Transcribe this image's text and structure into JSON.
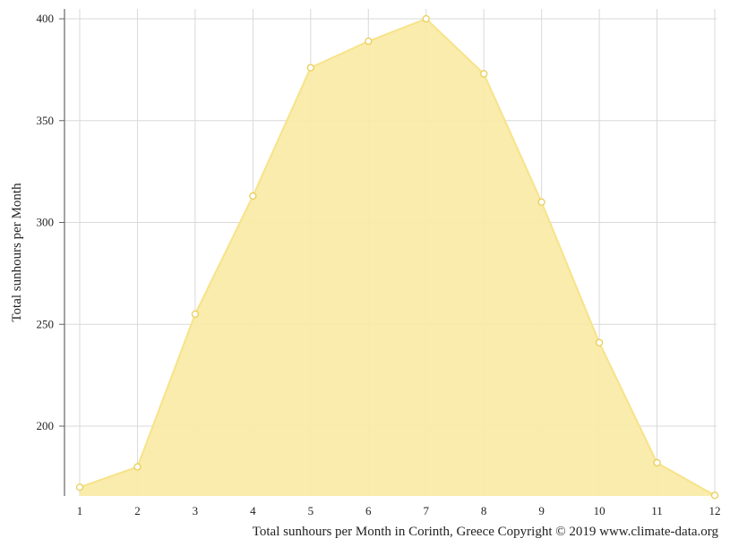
{
  "chart_data": {
    "type": "area",
    "title": "",
    "ylabel": "Total sunhours per Month",
    "xlabel": "",
    "caption": "Total sunhours per Month in Corinth, Greece Copyright © 2019 www.climate-data.org",
    "x": [
      1,
      2,
      3,
      4,
      5,
      6,
      7,
      8,
      9,
      10,
      11,
      12
    ],
    "x_tick_labels": [
      "1",
      "2",
      "3",
      "4",
      "5",
      "6",
      "7",
      "8",
      "9",
      "10",
      "11",
      "12"
    ],
    "y_tick_labels": [
      "400",
      "350",
      "300",
      "250",
      "200"
    ],
    "y_ticks": [
      400,
      350,
      300,
      250,
      200
    ],
    "series": [
      {
        "values": [
          170,
          180,
          255,
          313,
          376,
          389,
          400,
          373,
          310,
          241,
          182,
          166
        ]
      }
    ],
    "ylim": [
      166,
      404
    ],
    "xlim": [
      1,
      12
    ],
    "grid": true,
    "legend": "none",
    "colors": {
      "fill": "#f9eba8",
      "line": "#f7e38a",
      "marker_fill": "#ffffff",
      "marker_stroke": "#eacd55",
      "grid": "#d9d9d9",
      "axis": "#666666"
    }
  }
}
